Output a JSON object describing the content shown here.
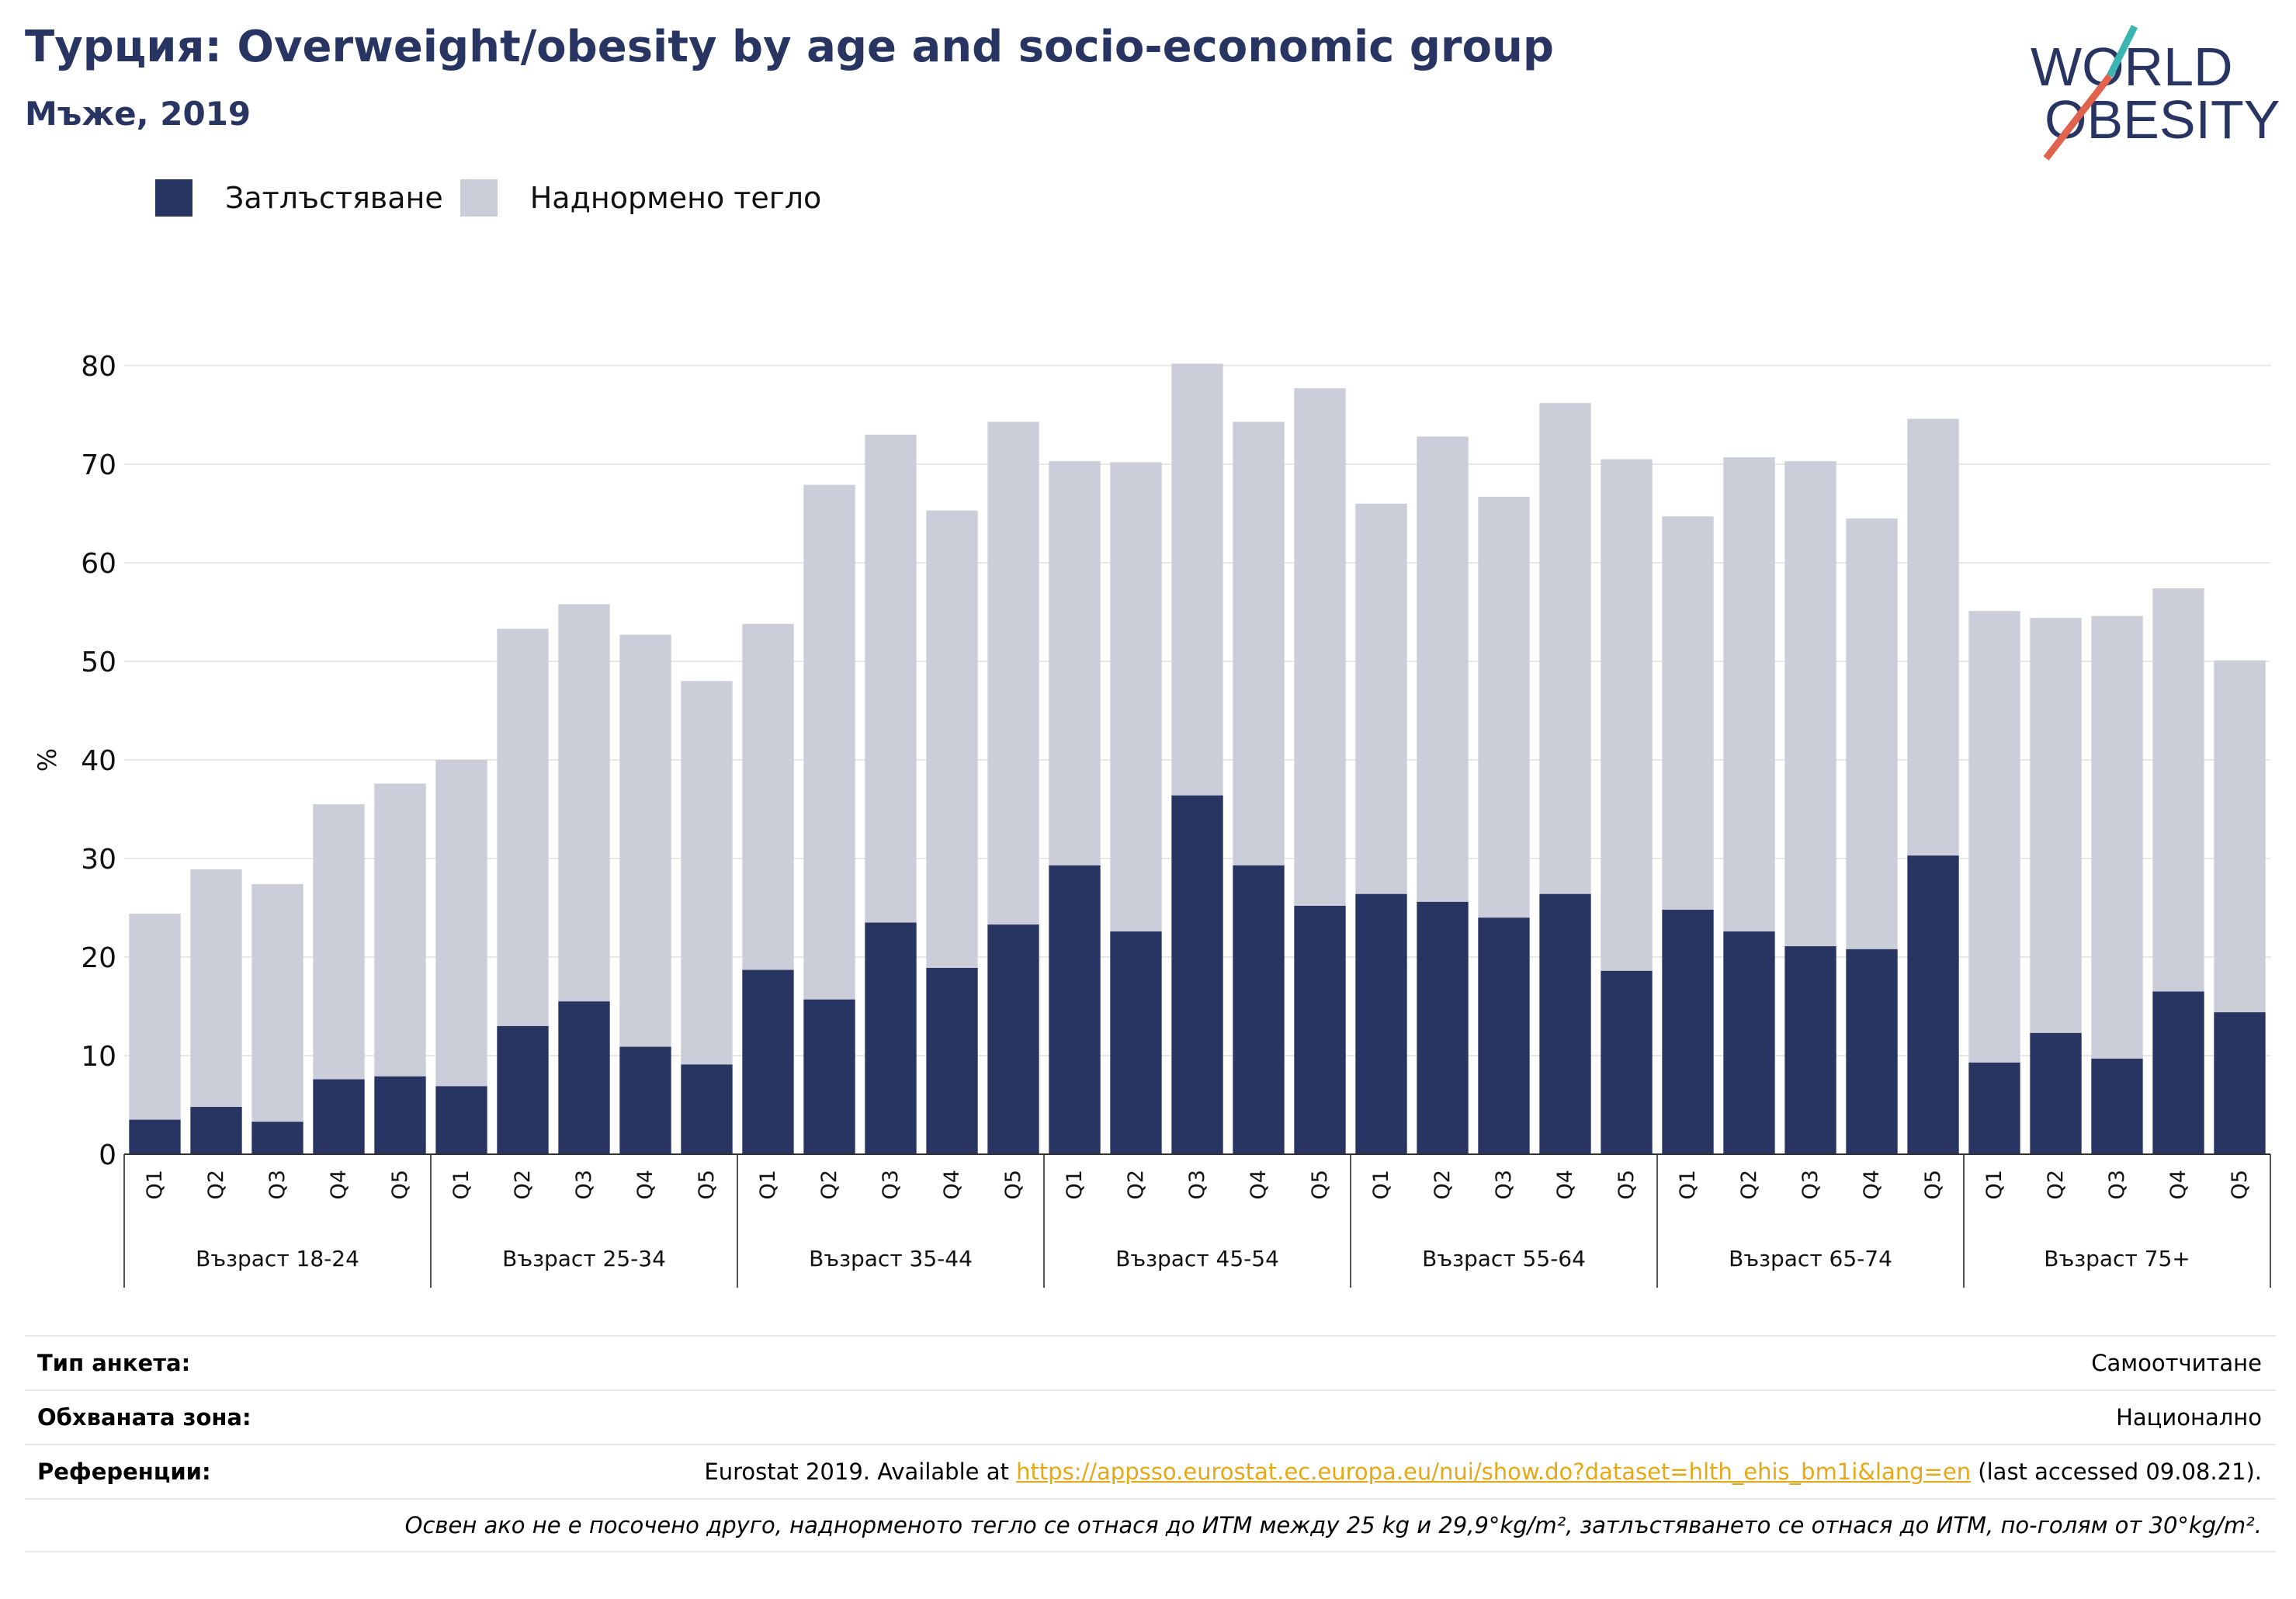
{
  "header": {
    "title": "Турция: Overweight/obesity by age and socio-economic group",
    "subtitle": "Мъже, 2019"
  },
  "logo": {
    "line1": "WORLD",
    "line2": "OBESITY",
    "icon": "world-obesity-logo"
  },
  "colors": {
    "obesity": "#283562",
    "overweight": "#cbcdd9",
    "title": "#283562",
    "link": "#e6a817"
  },
  "legend": [
    {
      "label": "Затлъстяване",
      "color": "#283562"
    },
    {
      "label": "Наднормено тегло",
      "color": "#cbcdd9"
    }
  ],
  "chart_data": {
    "type": "bar",
    "stacked": true,
    "ylabel": "%",
    "ylim": [
      0,
      80
    ],
    "yticks": [
      0,
      10,
      20,
      30,
      40,
      50,
      60,
      70,
      80
    ],
    "grid": true,
    "legend_position": "top-left",
    "groups": [
      {
        "label": "Възраст 18-24",
        "categories": [
          "Q1",
          "Q2",
          "Q3",
          "Q4",
          "Q5"
        ],
        "obesity": [
          3.5,
          4.8,
          3.3,
          7.6,
          7.9
        ],
        "total": [
          24.4,
          28.9,
          27.4,
          35.5,
          37.6
        ]
      },
      {
        "label": "Възраст 25-34",
        "categories": [
          "Q1",
          "Q2",
          "Q3",
          "Q4",
          "Q5"
        ],
        "obesity": [
          6.9,
          13.0,
          15.5,
          10.9,
          9.1
        ],
        "total": [
          40.0,
          53.3,
          55.8,
          52.7,
          48.0
        ]
      },
      {
        "label": "Възраст 35-44",
        "categories": [
          "Q1",
          "Q2",
          "Q3",
          "Q4",
          "Q5"
        ],
        "obesity": [
          18.7,
          15.7,
          23.5,
          18.9,
          23.3
        ],
        "total": [
          53.8,
          67.9,
          73.0,
          65.3,
          74.3
        ]
      },
      {
        "label": "Възраст 45-54",
        "categories": [
          "Q1",
          "Q2",
          "Q3",
          "Q4",
          "Q5"
        ],
        "obesity": [
          29.3,
          22.6,
          36.4,
          29.3,
          25.2
        ],
        "total": [
          70.3,
          70.2,
          80.2,
          74.3,
          77.7
        ]
      },
      {
        "label": "Възраст 55-64",
        "categories": [
          "Q1",
          "Q2",
          "Q3",
          "Q4",
          "Q5"
        ],
        "obesity": [
          26.4,
          25.6,
          24.0,
          26.4,
          18.6
        ],
        "total": [
          66.0,
          72.8,
          66.7,
          76.2,
          70.5
        ]
      },
      {
        "label": "Възраст 65-74",
        "categories": [
          "Q1",
          "Q2",
          "Q3",
          "Q4",
          "Q5"
        ],
        "obesity": [
          24.8,
          22.6,
          21.1,
          20.8,
          30.3
        ],
        "total": [
          64.7,
          70.7,
          70.3,
          64.5,
          74.6
        ]
      },
      {
        "label": "Възраст 75+",
        "categories": [
          "Q1",
          "Q2",
          "Q3",
          "Q4",
          "Q5"
        ],
        "obesity": [
          9.3,
          12.3,
          9.7,
          16.5,
          14.4
        ],
        "total": [
          55.1,
          54.4,
          54.6,
          57.4,
          50.1
        ]
      }
    ]
  },
  "info": {
    "survey_type_label": "Тип анкета:",
    "survey_type_value": "Самоотчитане",
    "coverage_label": "Обхваната зона:",
    "coverage_value": "Национално",
    "references_label": "Референции:",
    "references_prefix": "Eurostat 2019. Available at ",
    "references_link": "https://appsso.eurostat.ec.europa.eu/nui/show.do?dataset=hlth_ehis_bm1i&lang=en",
    "references_suffix": " (last accessed 09.08.21).",
    "note": "Освен ако не е посочено друго, наднорменото тегло се отнася до ИТМ между 25 kg и 29,9°kg/m², затлъстяването се отнася до ИТМ, по-голям от 30°kg/m²."
  }
}
